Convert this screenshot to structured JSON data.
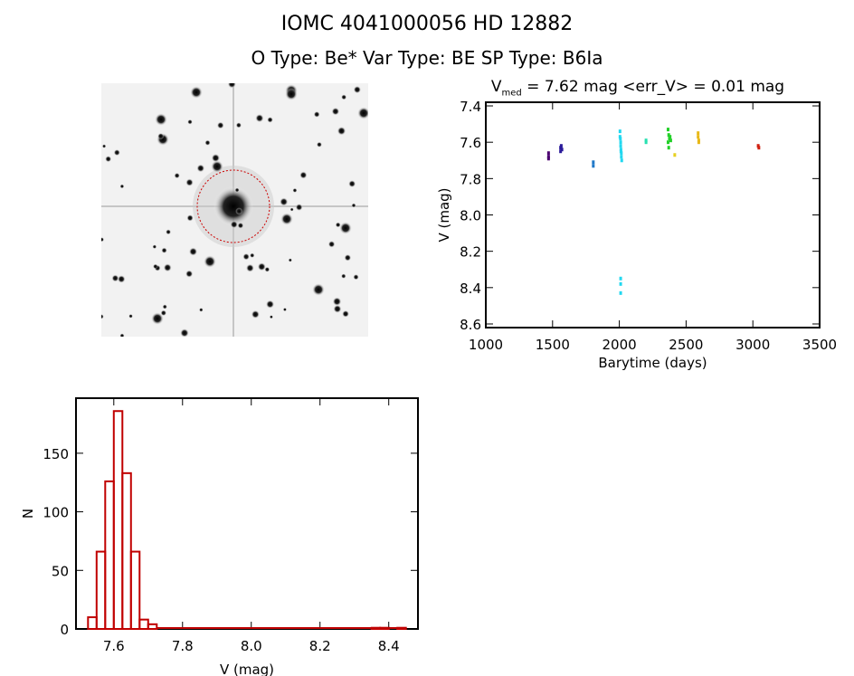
{
  "header": {
    "title": "IOMC 4041000056    HD  12882",
    "subtitle": "O Type: Be*  Var Type: BE  SP Type: B6Ia"
  },
  "image_panel": {
    "label": "sky-cutout"
  },
  "chart_data": [
    {
      "type": "scatter",
      "title_prefix": "V",
      "title_sub": "med",
      "title_rest": " = 7.62 mag <err_V> = 0.01 mag",
      "xlabel": "Barytime (days)",
      "ylabel": "V (mag)",
      "xlim": [
        1000,
        3500
      ],
      "ylim": [
        8.62,
        7.38
      ],
      "xticks": [
        1000,
        1500,
        2000,
        2500,
        3000,
        3500
      ],
      "yticks": [
        "7.4",
        "7.6",
        "7.8",
        "8.0",
        "8.2",
        "8.4",
        "8.6"
      ],
      "series": [
        {
          "color": "#4b0070",
          "x": [
            1470,
            1470,
            1470
          ],
          "y": [
            7.66,
            7.68,
            7.69
          ]
        },
        {
          "color": "#2a1a9a",
          "x": [
            1560,
            1565,
            1570,
            1560
          ],
          "y": [
            7.63,
            7.62,
            7.64,
            7.65
          ]
        },
        {
          "color": "#1f78c8",
          "x": [
            1805,
            1805
          ],
          "y": [
            7.71,
            7.73
          ]
        },
        {
          "color": "#22d8f0",
          "x": [
            2005,
            2005,
            2010,
            2010,
            2012,
            2015,
            2015,
            2018,
            2008,
            2012,
            2010,
            2010,
            2010
          ],
          "y": [
            7.54,
            7.57,
            7.6,
            7.62,
            7.64,
            7.66,
            7.68,
            7.7,
            7.58,
            7.65,
            8.35,
            8.38,
            8.43
          ]
        },
        {
          "color": "#28e0b0",
          "x": [
            2200,
            2200
          ],
          "y": [
            7.59,
            7.6
          ]
        },
        {
          "color": "#22d028",
          "x": [
            2365,
            2370,
            2375,
            2380,
            2385,
            2365,
            2370
          ],
          "y": [
            7.53,
            7.56,
            7.58,
            7.57,
            7.59,
            7.6,
            7.63
          ]
        },
        {
          "color": "#e6d020",
          "x": [
            2415
          ],
          "y": [
            7.67
          ]
        },
        {
          "color": "#e8b818",
          "x": [
            2590,
            2590,
            2595,
            2595
          ],
          "y": [
            7.55,
            7.57,
            7.59,
            7.6
          ]
        },
        {
          "color": "#d02010",
          "x": [
            3040,
            3045
          ],
          "y": [
            7.62,
            7.63
          ]
        }
      ]
    },
    {
      "type": "bar",
      "xlabel": "V (mag)",
      "ylabel": "N",
      "xlim": [
        7.49,
        8.485
      ],
      "ylim": [
        0,
        197
      ],
      "xticks": [
        "7.6",
        "7.8",
        "8.0",
        "8.2",
        "8.4"
      ],
      "yticks": [
        "0",
        "50",
        "100",
        "150"
      ],
      "bin_width": 0.025,
      "bin_starts": [
        7.525,
        7.55,
        7.575,
        7.6,
        7.625,
        7.65,
        7.675,
        7.7,
        8.35,
        8.375,
        8.425
      ],
      "values": [
        10,
        66,
        126,
        186,
        133,
        66,
        8,
        4,
        1,
        1,
        1
      ],
      "color": "#c00000"
    }
  ]
}
